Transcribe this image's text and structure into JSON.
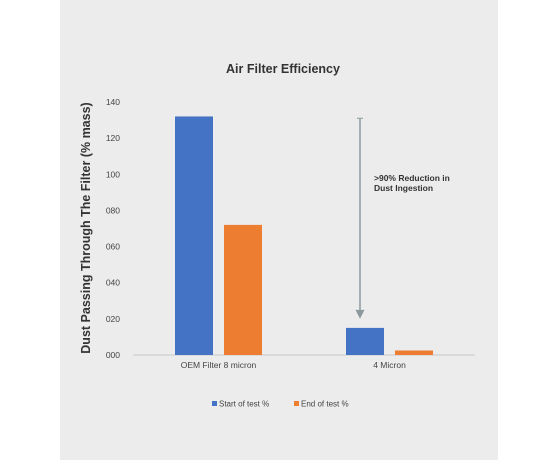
{
  "chart_data": {
    "type": "bar",
    "title": "Air Filter Efficiency",
    "ylabel": "Dust Passing Through The Filter (% mass)",
    "xlabel": "",
    "categories": [
      "OEM Filter 8 micron",
      "4 Micron"
    ],
    "series": [
      {
        "name": "Start of test %",
        "values": [
          132,
          15
        ],
        "color": "#4472c4"
      },
      {
        "name": "End of test %",
        "values": [
          72,
          2.5
        ],
        "color": "#ed7d31"
      }
    ],
    "ylim": [
      0,
      140
    ],
    "yticks": [
      0,
      20,
      40,
      60,
      80,
      100,
      120,
      140
    ],
    "ytick_labels": [
      "000",
      "020",
      "040",
      "060",
      "080",
      "100",
      "120",
      "140"
    ],
    "grid": false,
    "legend_position": "bottom",
    "annotation": {
      "lines": [
        ">90% Reduction in",
        "Dust Ingestion"
      ],
      "arrow_from_value": 131,
      "arrow_to_value": 20,
      "color": "#8c9aa0"
    }
  }
}
